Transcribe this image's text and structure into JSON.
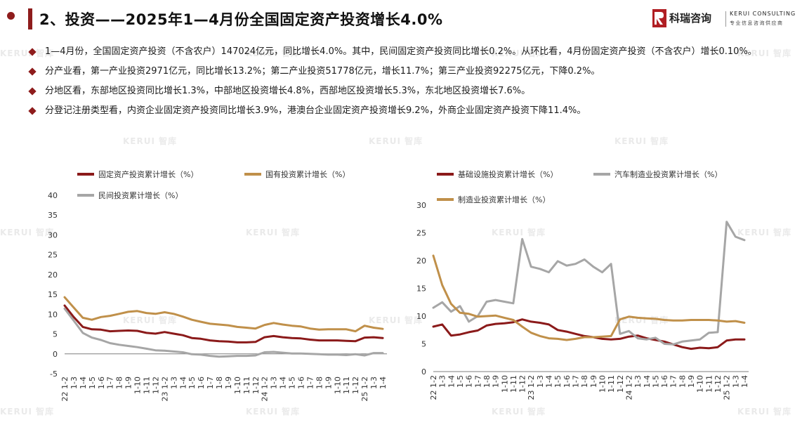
{
  "header": {
    "title": "2、投资——2025年1—4月份全国固定资产投资增长4.0%",
    "logo_cn": "科瑞咨询",
    "logo_en": "KERUI CONSULTING",
    "logo_sub": "专业信息咨询供应商"
  },
  "watermark": "KERUI 智库",
  "bullets": [
    "1—4月份，全国固定资产投资（不含农户）147024亿元，同比增长4.0%。其中，民间固定资产投资同比增长0.2%。从环比看，4月份固定资产投资（不含农户）增长0.10%。",
    "分产业看，第一产业投资2971亿元，同比增长13.2%；第二产业投资51778亿元，增长11.7%；第三产业投资92275亿元，下降0.2%。",
    "分地区看，东部地区投资同比增长1.3%，中部地区投资增长4.8%，西部地区投资增长5.3%，东北地区投资增长7.6%。",
    "分登记注册类型看，内资企业固定资产投资同比增长3.9%，港澳台企业固定资产投资增长9.2%，外商企业固定资产投资下降11.4%。"
  ],
  "colors": {
    "accent": "#8e1c1c",
    "series_red": "#8b1a1a",
    "series_gold": "#c0904a",
    "series_gray": "#a6a6a6"
  },
  "chart_data": [
    {
      "type": "line",
      "ylim": [
        -5,
        40
      ],
      "yticks": [
        -5,
        0,
        5,
        10,
        15,
        20,
        25,
        30,
        35,
        40
      ],
      "x_tick_labels": [
        "22 1-2",
        "1-3",
        "1-4",
        "1-5",
        "1-6",
        "1-7",
        "1-8",
        "1-9",
        "1-10",
        "1-11",
        "1-12",
        "23 1-2",
        "1-3",
        "1-4",
        "1-5",
        "1-6",
        "1-7",
        "1-8",
        "1-9",
        "1-10",
        "1-11",
        "1-12",
        "24 1-2",
        "1-3",
        "1-4",
        "1-5",
        "1-6",
        "1-7",
        "1-8",
        "1-9",
        "1-10",
        "1-11",
        "1-12",
        "25 1-2",
        "1-3",
        "1-4"
      ],
      "legend_position": "top",
      "series": [
        {
          "name": "固定资产投资累计增长（%）",
          "color": "#8b1a1a",
          "values": [
            12.2,
            9.3,
            6.8,
            6.2,
            6.1,
            5.7,
            5.8,
            5.9,
            5.8,
            5.3,
            5.1,
            5.5,
            5.1,
            4.7,
            4.0,
            3.8,
            3.4,
            3.2,
            3.1,
            2.9,
            2.9,
            3.0,
            4.2,
            4.5,
            4.2,
            4.0,
            3.9,
            3.6,
            3.4,
            3.4,
            3.4,
            3.3,
            3.2,
            4.1,
            4.2,
            4.0
          ]
        },
        {
          "name": "国有投资累计增长（%）",
          "color": "#c0904a",
          "values": [
            14.3,
            11.7,
            9.1,
            8.6,
            9.3,
            9.6,
            10.1,
            10.6,
            10.8,
            10.3,
            10.1,
            10.5,
            10.1,
            9.4,
            8.6,
            8.1,
            7.6,
            7.4,
            7.2,
            6.8,
            6.6,
            6.4,
            7.3,
            7.8,
            7.4,
            7.1,
            6.9,
            6.4,
            6.1,
            6.2,
            6.2,
            6.2,
            5.7,
            7.1,
            6.6,
            6.3
          ]
        },
        {
          "name": "民间投资累计增长（%）",
          "color": "#a6a6a6",
          "values": [
            11.4,
            8.4,
            5.3,
            4.1,
            3.5,
            2.7,
            2.3,
            2.0,
            1.7,
            1.3,
            0.9,
            0.8,
            0.6,
            0.4,
            -0.1,
            -0.2,
            -0.5,
            -0.7,
            -0.6,
            -0.5,
            -0.5,
            -0.4,
            0.4,
            0.5,
            0.3,
            0.1,
            0.1,
            0.0,
            -0.1,
            -0.2,
            -0.2,
            -0.3,
            -0.1,
            -0.4,
            0.2,
            0.2
          ]
        }
      ]
    },
    {
      "type": "line",
      "ylim": [
        0,
        30
      ],
      "yticks": [
        0,
        5,
        10,
        15,
        20,
        25,
        30
      ],
      "x_tick_labels": [
        "22 1-2",
        "1-3",
        "1-4",
        "1-5",
        "1-6",
        "1-7",
        "1-8",
        "1-9",
        "1-10",
        "1-11",
        "1-12",
        "23 1-2",
        "1-3",
        "1-4",
        "1-5",
        "1-6",
        "1-7",
        "1-8",
        "1-9",
        "1-10",
        "1-11",
        "1-12",
        "24 1-2",
        "1-3",
        "1-4",
        "1-5",
        "1-6",
        "1-7",
        "1-8",
        "1-9",
        "1-10",
        "1-11",
        "1-12",
        "25 1-2",
        "1-3",
        "1-4"
      ],
      "legend_position": "top",
      "series": [
        {
          "name": "基础设施投资累计增长（%）",
          "color": "#8b1a1a",
          "values": [
            8.1,
            8.5,
            6.5,
            6.7,
            7.1,
            7.4,
            8.3,
            8.6,
            8.7,
            8.9,
            9.4,
            9.0,
            8.8,
            8.5,
            7.5,
            7.2,
            6.8,
            6.4,
            6.2,
            5.9,
            5.8,
            5.9,
            6.3,
            6.5,
            6.0,
            5.7,
            5.4,
            4.9,
            4.4,
            4.1,
            4.3,
            4.2,
            4.4,
            5.6,
            5.8,
            5.8
          ]
        },
        {
          "name": "汽车制造业投资累计增长（%）",
          "color": "#a6a6a6",
          "values": [
            11.5,
            12.5,
            10.8,
            11.8,
            9.0,
            10.0,
            12.6,
            12.9,
            12.6,
            12.3,
            23.9,
            18.9,
            18.5,
            17.9,
            19.9,
            19.1,
            19.4,
            20.2,
            18.9,
            17.9,
            19.4,
            6.8,
            7.3,
            6.0,
            5.8,
            6.1,
            5.0,
            4.9,
            5.4,
            5.6,
            5.8,
            7.0,
            7.1,
            27.0,
            24.3,
            23.7
          ]
        },
        {
          "name": "制造业投资累计增长（%）",
          "color": "#c0904a",
          "values": [
            20.9,
            15.6,
            12.2,
            10.6,
            10.4,
            9.9,
            10.0,
            10.1,
            9.7,
            9.3,
            8.1,
            7.0,
            6.4,
            6.0,
            5.9,
            5.7,
            5.9,
            6.2,
            6.2,
            6.3,
            6.4,
            9.4,
            9.9,
            9.7,
            9.6,
            9.5,
            9.3,
            9.2,
            9.2,
            9.3,
            9.3,
            9.3,
            9.2,
            9.0,
            9.1,
            8.8
          ]
        }
      ]
    }
  ]
}
